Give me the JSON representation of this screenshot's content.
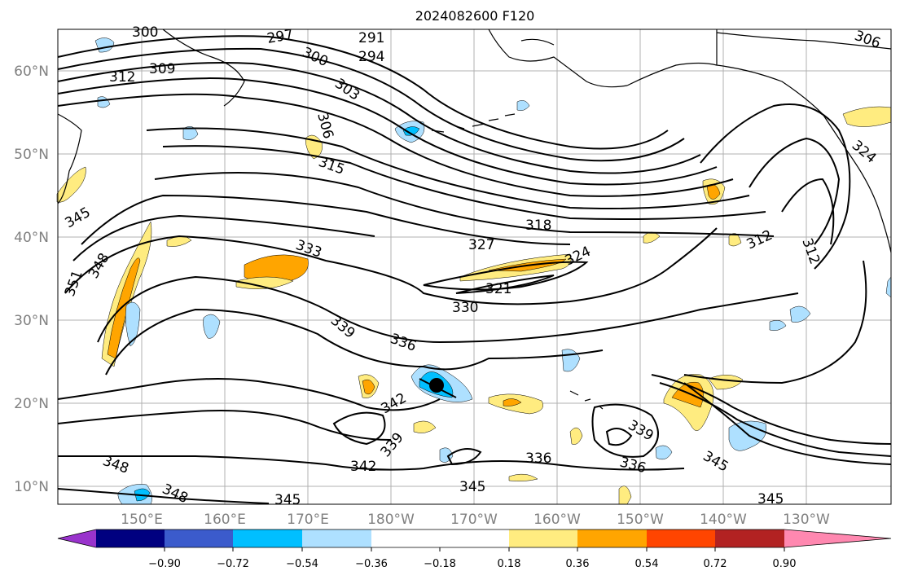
{
  "title": "2024082600 F120",
  "colors": {
    "text_axis": "#808080",
    "grid": "#b0b0b0",
    "contour": "#000000",
    "coast": "#000000",
    "center_marker": "#000000"
  },
  "map": {
    "lat_labels": [
      "60°N",
      "50°N",
      "40°N",
      "30°N",
      "20°N",
      "10°N"
    ],
    "lon_labels": [
      "150°E",
      "160°E",
      "170°E",
      "180°W",
      "170°W",
      "160°W",
      "150°W",
      "140°W",
      "130°W"
    ],
    "contour_labels": [
      "300",
      "297",
      "291",
      "294",
      "306",
      "309",
      "312",
      "300",
      "303",
      "306",
      "315",
      "318",
      "327",
      "324",
      "312",
      "312",
      "324",
      "333",
      "321",
      "330",
      "339",
      "336",
      "342",
      "339",
      "342",
      "336",
      "339",
      "336",
      "345",
      "348",
      "348",
      "345",
      "345",
      "345",
      "351",
      "348",
      "345"
    ]
  },
  "colorbar": {
    "tick_labels": [
      "−0.90",
      "−0.72",
      "−0.54",
      "−0.36",
      "−0.18",
      "0.18",
      "0.36",
      "0.54",
      "0.72",
      "0.90"
    ],
    "segments": [
      {
        "color": "#9933cc"
      },
      {
        "color": "#000080"
      },
      {
        "color": "#3b5bcc"
      },
      {
        "color": "#00bfff"
      },
      {
        "color": "#aee0ff"
      },
      {
        "color": "#ffffff"
      },
      {
        "color": "#ffec80"
      },
      {
        "color": "#ffa500"
      },
      {
        "color": "#ff4500"
      },
      {
        "color": "#b22222"
      },
      {
        "color": "#ff88b0"
      }
    ]
  }
}
